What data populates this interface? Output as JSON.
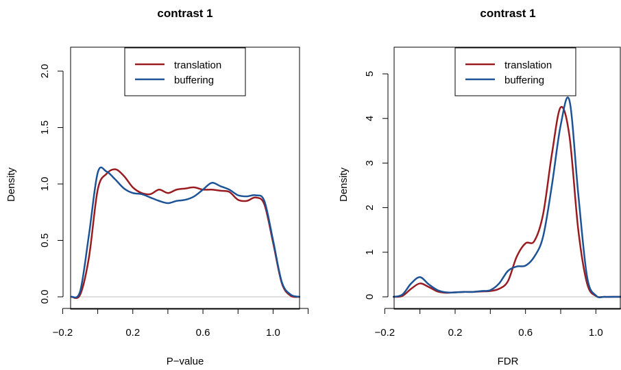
{
  "chart_data": [
    {
      "type": "line",
      "title": "contrast 1",
      "xlabel": "P−value",
      "ylabel": "Density",
      "xlim": [
        -0.2,
        1.2
      ],
      "ylim": [
        0,
        2.2
      ],
      "xticks": [
        -0.2,
        0.0,
        0.2,
        0.4,
        0.6,
        0.8,
        1.0,
        1.2
      ],
      "xtick_labels": [
        "−0.2",
        "",
        "0.2",
        "",
        "0.6",
        "",
        "1.0",
        ""
      ],
      "yticks": [
        0.0,
        0.5,
        1.0,
        1.5,
        2.0
      ],
      "ytick_labels": [
        "0.0",
        "0.5",
        "1.0",
        "1.5",
        "2.0"
      ],
      "legend": {
        "position": "top",
        "entries": [
          "translation",
          "buffering"
        ]
      },
      "series": [
        {
          "name": "translation",
          "color": "#9a1b1f",
          "x": [
            -0.15,
            -0.1,
            -0.05,
            0.0,
            0.05,
            0.1,
            0.15,
            0.2,
            0.25,
            0.3,
            0.35,
            0.4,
            0.45,
            0.5,
            0.55,
            0.6,
            0.65,
            0.7,
            0.75,
            0.8,
            0.85,
            0.9,
            0.95,
            1.0,
            1.05,
            1.1,
            1.15
          ],
          "y": [
            0.0,
            0.02,
            0.35,
            0.95,
            1.09,
            1.13,
            1.07,
            0.97,
            0.92,
            0.91,
            0.95,
            0.92,
            0.95,
            0.96,
            0.97,
            0.95,
            0.95,
            0.94,
            0.93,
            0.86,
            0.85,
            0.88,
            0.82,
            0.48,
            0.12,
            0.01,
            0.0
          ]
        },
        {
          "name": "buffering",
          "color": "#1c5396",
          "x": [
            -0.15,
            -0.1,
            -0.05,
            0.0,
            0.05,
            0.1,
            0.15,
            0.2,
            0.25,
            0.3,
            0.35,
            0.4,
            0.45,
            0.5,
            0.55,
            0.6,
            0.65,
            0.7,
            0.75,
            0.8,
            0.85,
            0.9,
            0.95,
            1.0,
            1.05,
            1.1,
            1.15
          ],
          "y": [
            0.0,
            0.05,
            0.55,
            1.1,
            1.11,
            1.04,
            0.96,
            0.92,
            0.91,
            0.88,
            0.85,
            0.83,
            0.85,
            0.86,
            0.89,
            0.95,
            1.01,
            0.98,
            0.95,
            0.9,
            0.89,
            0.9,
            0.85,
            0.5,
            0.13,
            0.02,
            0.0
          ]
        }
      ]
    },
    {
      "type": "line",
      "title": "contrast 1",
      "xlabel": "FDR",
      "ylabel": "Density",
      "xlim": [
        -0.2,
        1.2
      ],
      "ylim": [
        0,
        5.5
      ],
      "xticks": [
        -0.2,
        0.0,
        0.2,
        0.4,
        0.6,
        0.8,
        1.0,
        1.2
      ],
      "xtick_labels": [
        "−0.2",
        "",
        "0.2",
        "",
        "0.6",
        "",
        "1.0",
        ""
      ],
      "yticks": [
        0,
        1,
        2,
        3,
        4,
        5
      ],
      "ytick_labels": [
        "0",
        "1",
        "2",
        "3",
        "4",
        "5"
      ],
      "legend": {
        "position": "top",
        "entries": [
          "translation",
          "buffering"
        ]
      },
      "series": [
        {
          "name": "translation",
          "color": "#9a1b1f",
          "x": [
            -0.15,
            -0.1,
            -0.05,
            0.0,
            0.05,
            0.1,
            0.15,
            0.2,
            0.25,
            0.3,
            0.35,
            0.4,
            0.45,
            0.5,
            0.55,
            0.6,
            0.65,
            0.7,
            0.75,
            0.8,
            0.85,
            0.9,
            0.95,
            1.0,
            1.05,
            1.1,
            1.15
          ],
          "y": [
            0.0,
            0.02,
            0.18,
            0.3,
            0.22,
            0.12,
            0.09,
            0.1,
            0.11,
            0.11,
            0.12,
            0.13,
            0.18,
            0.35,
            0.9,
            1.2,
            1.25,
            1.85,
            3.2,
            4.25,
            3.6,
            1.5,
            0.3,
            0.02,
            0.0,
            0.0,
            0.0
          ]
        },
        {
          "name": "buffering",
          "color": "#1c5396",
          "x": [
            -0.15,
            -0.1,
            -0.05,
            0.0,
            0.05,
            0.1,
            0.15,
            0.2,
            0.25,
            0.3,
            0.35,
            0.4,
            0.45,
            0.5,
            0.55,
            0.6,
            0.65,
            0.7,
            0.75,
            0.8,
            0.85,
            0.9,
            0.95,
            1.0,
            1.05,
            1.1,
            1.15
          ],
          "y": [
            0.0,
            0.05,
            0.3,
            0.44,
            0.28,
            0.15,
            0.1,
            0.1,
            0.11,
            0.11,
            0.13,
            0.15,
            0.3,
            0.58,
            0.68,
            0.7,
            0.9,
            1.35,
            2.5,
            3.85,
            4.4,
            2.3,
            0.45,
            0.03,
            0.0,
            0.0,
            0.0
          ]
        }
      ]
    }
  ]
}
